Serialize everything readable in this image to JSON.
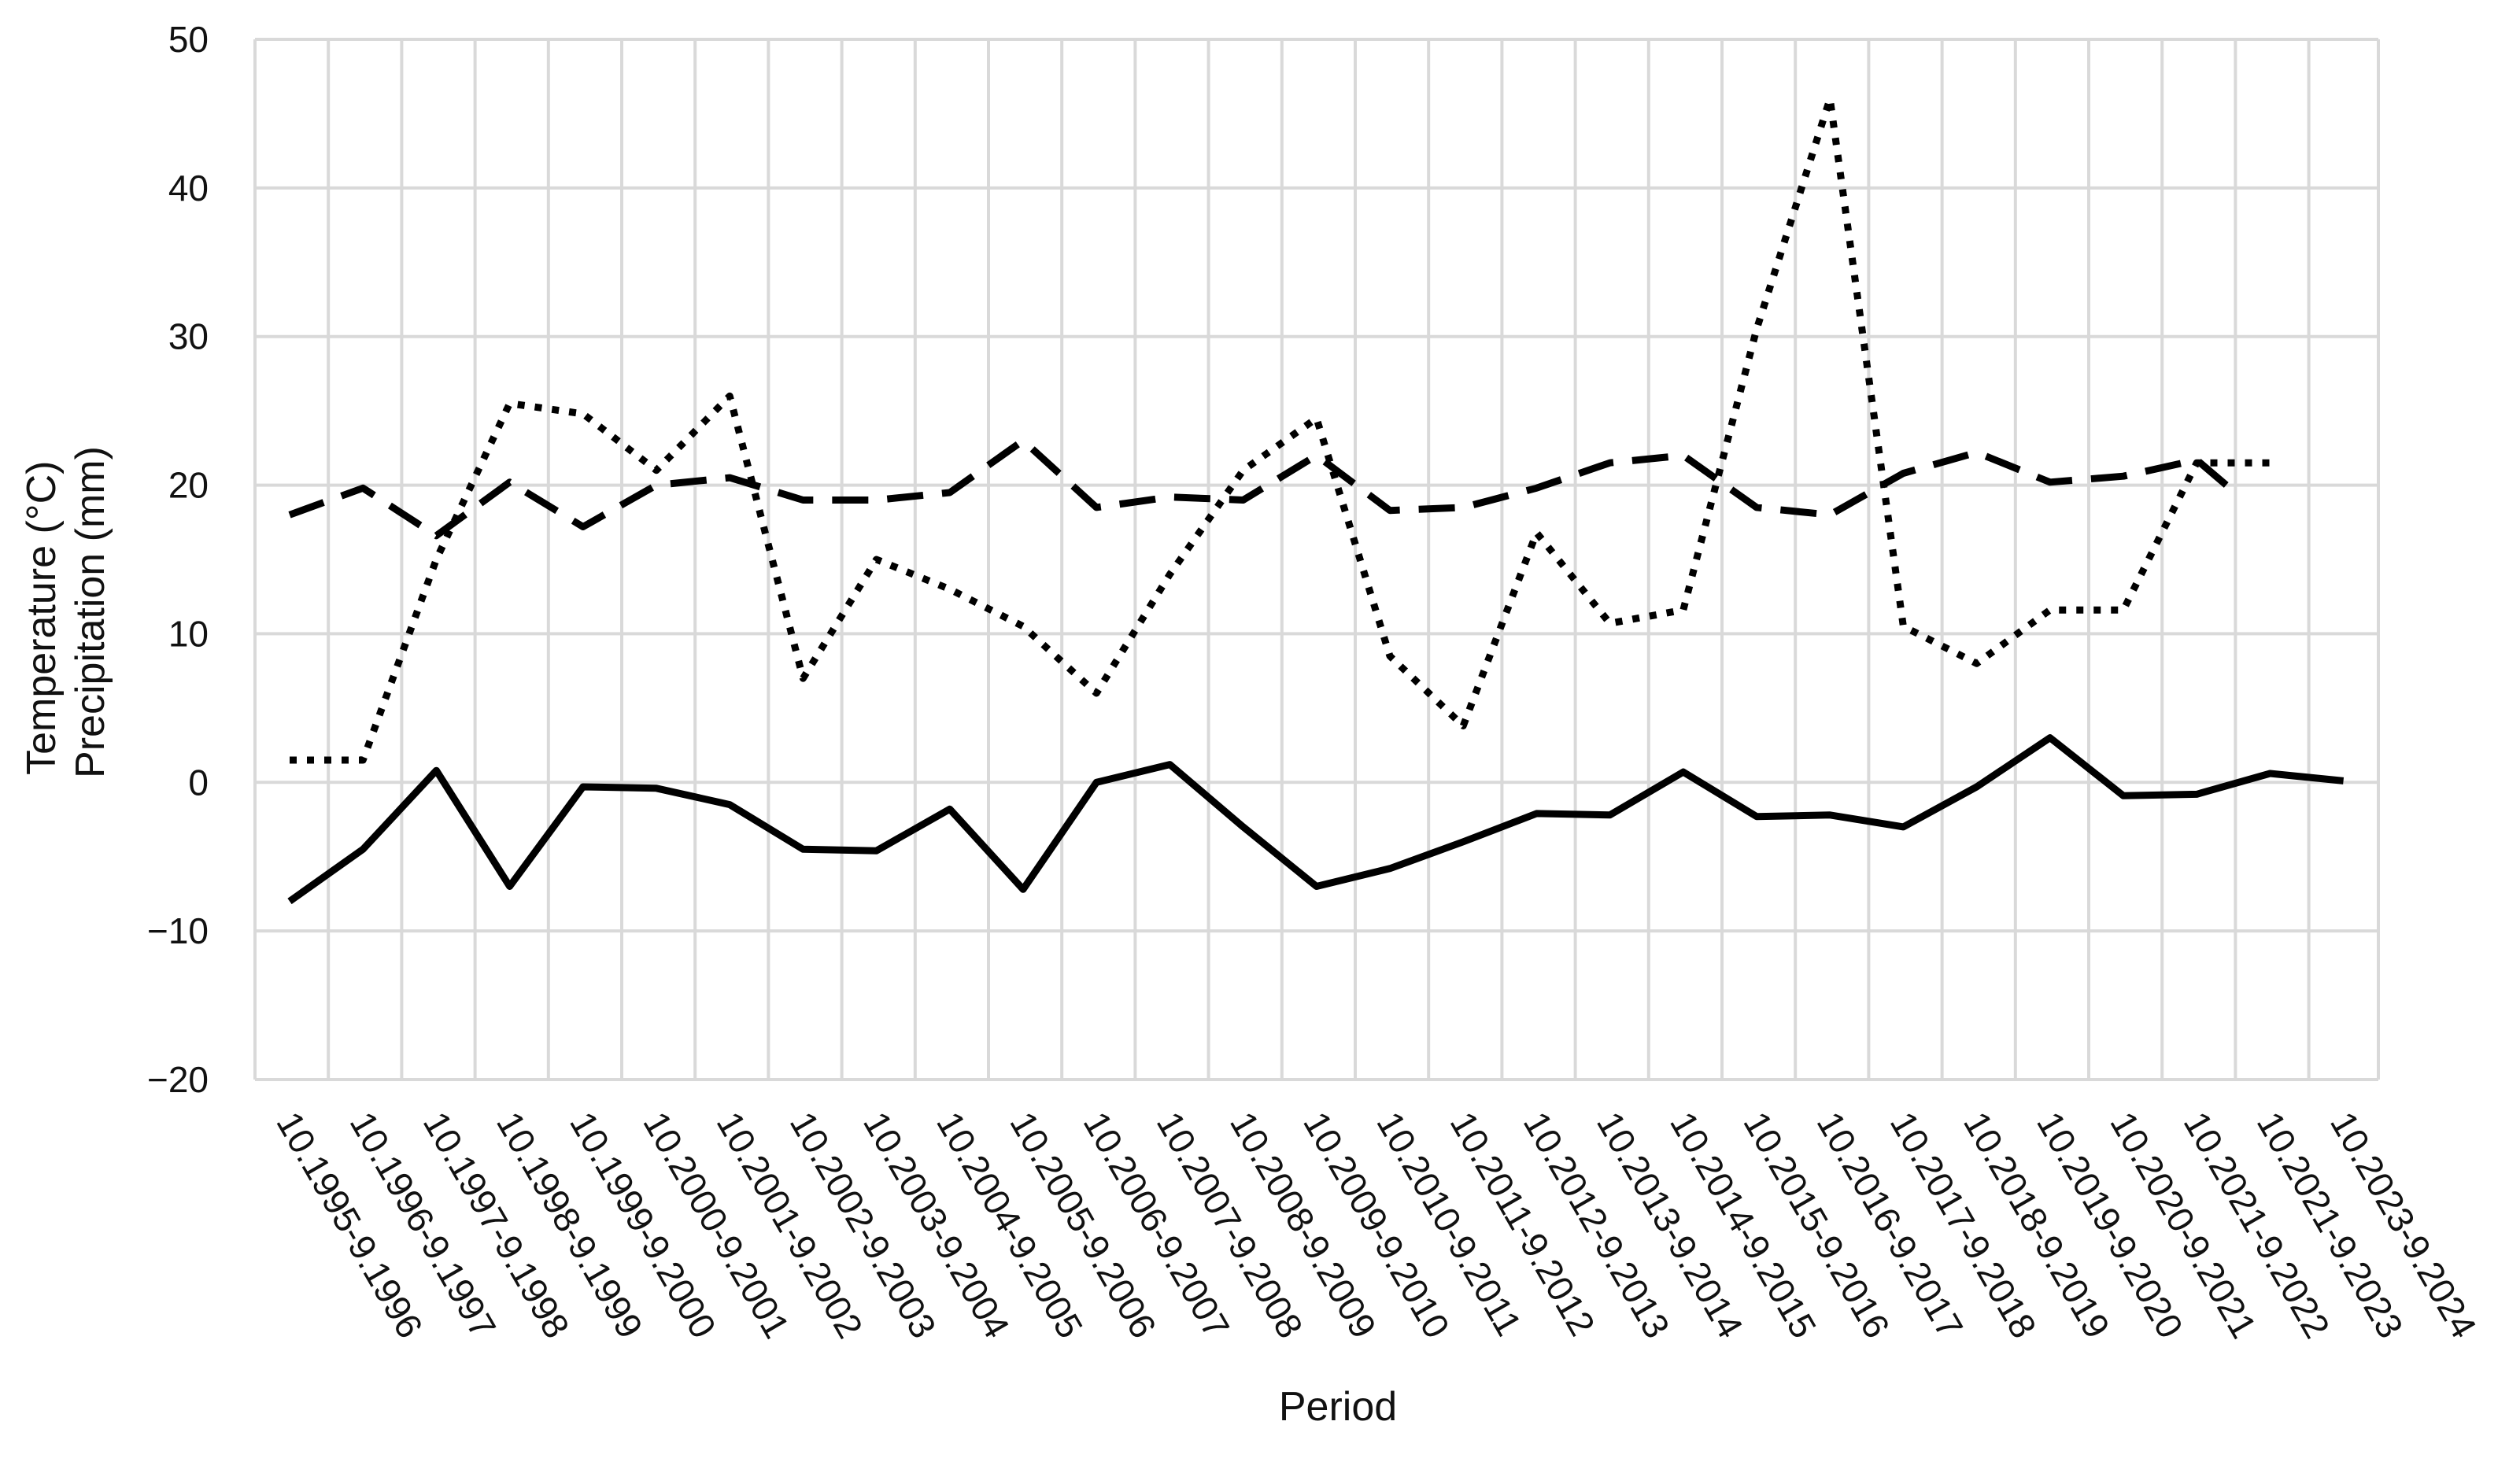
{
  "chart_data": {
    "type": "line",
    "xlabel": "Period",
    "ylabel_lines": [
      "Temperature (°C)",
      "Precipitation (mm)"
    ],
    "ylim": [
      -20,
      50
    ],
    "yticks": [
      50,
      40,
      30,
      20,
      10,
      0,
      -10,
      -20
    ],
    "yticks_display": [
      "50",
      "40",
      "30",
      "20",
      "10",
      "0",
      "−10",
      "−20"
    ],
    "grid": true,
    "legend": "none",
    "categories": [
      "10.1995-9.1996",
      "10.1996-9.1997",
      "10.1997-9.1998",
      "10.1998-9.1999",
      "10.1999-9.2000",
      "10.2000-9.2001",
      "10.2001-9.2002",
      "10.2002-9.2003",
      "10.2003-9.2004",
      "10.2004-9.2005",
      "10.2005-9.2006",
      "10.2006-9.2007",
      "10.2007-9.2008",
      "10.2008-9.2009",
      "10.2009-9.2010",
      "10.2010-9.2011",
      "10.2011-9.2012",
      "10.2012-9.2013",
      "10.2013-9.2014",
      "10.2014-9.2015",
      "10.2015-9.2016",
      "10.2016-9.2017",
      "10.2017-9.2018",
      "10.2018-9.2019",
      "10.2019-9.2020",
      "10.2020-9.2021",
      "10.2021-9.2022",
      "10.2021-9.2023",
      "10.2023-9.2024"
    ],
    "series": [
      {
        "style": "solid",
        "color": "#000000",
        "points": [
          [
            0,
            -8
          ],
          [
            1,
            -4.5
          ],
          [
            2,
            0.8
          ],
          [
            3,
            -7
          ],
          [
            4,
            -0.3
          ],
          [
            5,
            -0.4
          ],
          [
            6,
            -1.5
          ],
          [
            7,
            -4.5
          ],
          [
            8,
            -4.6
          ],
          [
            9,
            -1.8
          ],
          [
            10,
            -7.2
          ],
          [
            11,
            0
          ],
          [
            12,
            1.2
          ],
          [
            13,
            -3
          ],
          [
            14,
            -7
          ],
          [
            15,
            -5.8
          ],
          [
            16,
            -4
          ],
          [
            17,
            -2.1
          ],
          [
            18,
            -2.2
          ],
          [
            19,
            0.7
          ],
          [
            20,
            -2.3
          ],
          [
            21,
            -2.2
          ],
          [
            22,
            -3
          ],
          [
            23,
            -0.3
          ],
          [
            24,
            3
          ],
          [
            25,
            -0.9
          ],
          [
            26,
            -0.8
          ],
          [
            27,
            0.6
          ],
          [
            28,
            0.1
          ]
        ]
      },
      {
        "style": "dashed",
        "color": "#000000",
        "points": [
          [
            0,
            18
          ],
          [
            1,
            19.8
          ],
          [
            2,
            16.6
          ],
          [
            3,
            20.2
          ],
          [
            4,
            17.2
          ],
          [
            5,
            20
          ],
          [
            6,
            20.5
          ],
          [
            7,
            19
          ],
          [
            8,
            19
          ],
          [
            9,
            19.5
          ],
          [
            10,
            23
          ],
          [
            11,
            18.5
          ],
          [
            12,
            19.2
          ],
          [
            13,
            19
          ],
          [
            14,
            22
          ],
          [
            15,
            18.3
          ],
          [
            16,
            18.5
          ],
          [
            17,
            19.8
          ],
          [
            18,
            21.5
          ],
          [
            19,
            22
          ],
          [
            20,
            18.5
          ],
          [
            21,
            18
          ],
          [
            22,
            20.8
          ],
          [
            23,
            22.2
          ],
          [
            24,
            20.2
          ],
          [
            25,
            20.6
          ],
          [
            26,
            21.7
          ],
          [
            26.5,
            19.6
          ]
        ]
      },
      {
        "style": "dotted",
        "color": "#000000",
        "points": [
          [
            0,
            1.5
          ],
          [
            1,
            1.5
          ],
          [
            2,
            15
          ],
          [
            3,
            25.5
          ],
          [
            4,
            24.8
          ],
          [
            5,
            21
          ],
          [
            6,
            26
          ],
          [
            7,
            7
          ],
          [
            8,
            15
          ],
          [
            9,
            13
          ],
          [
            10,
            10.5
          ],
          [
            11,
            6
          ],
          [
            12,
            14
          ],
          [
            13,
            21
          ],
          [
            14,
            24.5
          ],
          [
            15,
            8.5
          ],
          [
            16,
            3.8
          ],
          [
            17,
            16.8
          ],
          [
            18,
            10.7
          ],
          [
            19,
            11.6
          ],
          [
            20,
            30.5
          ],
          [
            21,
            46
          ],
          [
            22,
            10.5
          ],
          [
            23,
            8
          ],
          [
            24,
            11.6
          ],
          [
            25,
            11.6
          ],
          [
            26,
            21.5
          ],
          [
            27,
            21.5
          ]
        ]
      }
    ]
  }
}
